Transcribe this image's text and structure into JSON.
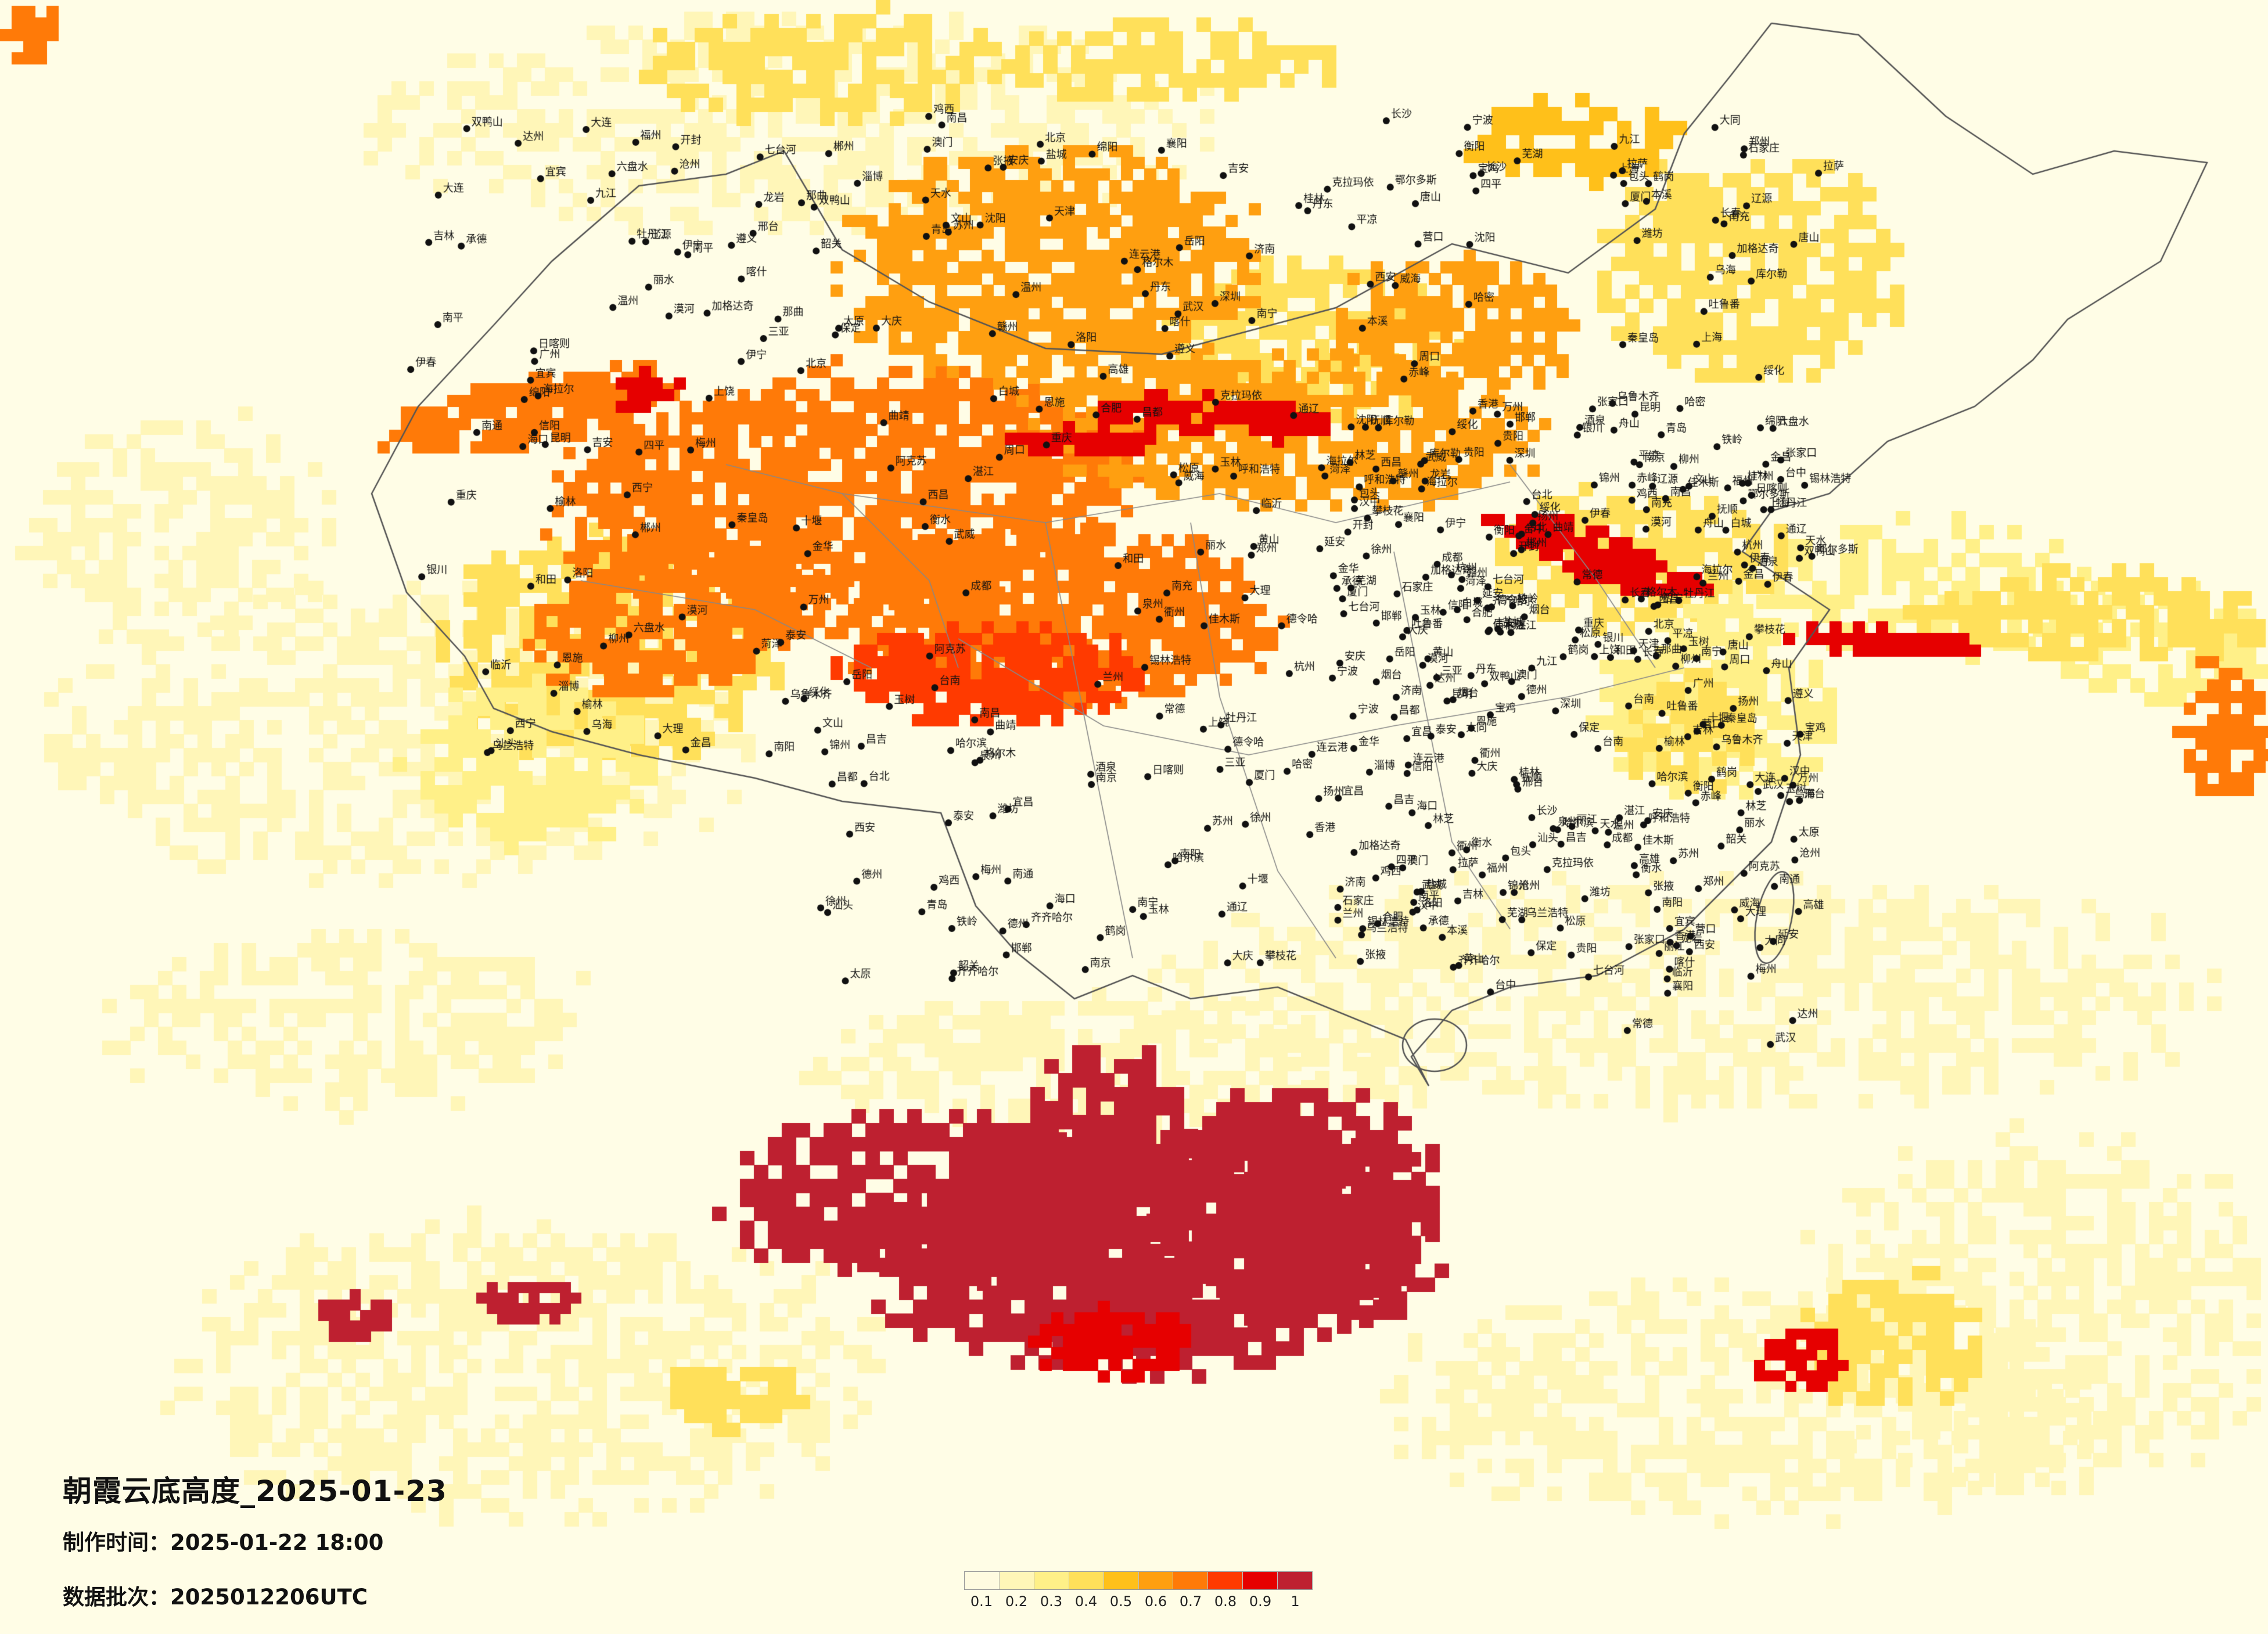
{
  "title": "朝霞云底高度_2025-01-23",
  "meta": {
    "made_label": "制作时间：",
    "made_value": "2025-01-22 18:00",
    "batch_label": "数据批次：",
    "batch_value": "2025012206UTC"
  },
  "legend": {
    "ticks": [
      "0.1",
      "0.2",
      "0.3",
      "0.4",
      "0.5",
      "0.6",
      "0.7",
      "0.8",
      "0.9",
      "1"
    ],
    "colors": [
      "#fffbe0",
      "#fff6b8",
      "#fff088",
      "#ffe05a",
      "#ffc01a",
      "#ff9f10",
      "#ff7a08",
      "#ff3a00",
      "#e60000",
      "#be2030"
    ]
  },
  "cities": [
    {
      "name": "漠河"
    },
    {
      "name": "加格达奇"
    },
    {
      "name": "海拉尔"
    },
    {
      "name": "齐齐哈尔"
    },
    {
      "name": "大庆"
    },
    {
      "name": "伊春"
    },
    {
      "name": "鹤岗"
    },
    {
      "name": "佳木斯"
    },
    {
      "name": "双鸭山"
    },
    {
      "name": "七台河"
    },
    {
      "name": "鸡西"
    },
    {
      "name": "牡丹江"
    },
    {
      "name": "哈尔滨"
    },
    {
      "name": "绥化"
    },
    {
      "name": "乌兰浩特"
    },
    {
      "name": "白城"
    },
    {
      "name": "松原"
    },
    {
      "name": "长春"
    },
    {
      "name": "吉林"
    },
    {
      "name": "通辽"
    },
    {
      "name": "四平"
    },
    {
      "name": "辽源"
    },
    {
      "name": "铁岭"
    },
    {
      "name": "抚顺"
    },
    {
      "name": "沈阳"
    },
    {
      "name": "本溪"
    },
    {
      "name": "丹东"
    },
    {
      "name": "锦州"
    },
    {
      "name": "营口"
    },
    {
      "name": "大连"
    },
    {
      "name": "赤峰"
    },
    {
      "name": "锡林浩特"
    },
    {
      "name": "张家口"
    },
    {
      "name": "北京"
    },
    {
      "name": "天津"
    },
    {
      "name": "唐山"
    },
    {
      "name": "秦皇岛"
    },
    {
      "name": "承德"
    },
    {
      "name": "保定"
    },
    {
      "name": "石家庄"
    },
    {
      "name": "衡水"
    },
    {
      "name": "沧州"
    },
    {
      "name": "德州"
    },
    {
      "name": "济南"
    },
    {
      "name": "淄博"
    },
    {
      "name": "潍坊"
    },
    {
      "name": "烟台"
    },
    {
      "name": "威海"
    },
    {
      "name": "青岛"
    },
    {
      "name": "临沂"
    },
    {
      "name": "泰安"
    },
    {
      "name": "菏泽"
    },
    {
      "name": "邯郸"
    },
    {
      "name": "邢台"
    },
    {
      "name": "太原"
    },
    {
      "name": "大同"
    },
    {
      "name": "呼和浩特"
    },
    {
      "name": "包头"
    },
    {
      "name": "鄂尔多斯"
    },
    {
      "name": "乌海"
    },
    {
      "name": "银川"
    },
    {
      "name": "西宁"
    },
    {
      "name": "兰州"
    },
    {
      "name": "天水"
    },
    {
      "name": "平凉"
    },
    {
      "name": "延安"
    },
    {
      "name": "榆林"
    },
    {
      "name": "西安"
    },
    {
      "name": "宝鸡"
    },
    {
      "name": "汉中"
    },
    {
      "name": "郑州"
    },
    {
      "name": "开封"
    },
    {
      "name": "洛阳"
    },
    {
      "name": "南阳"
    },
    {
      "name": "信阳"
    },
    {
      "name": "周口"
    },
    {
      "name": "徐州"
    },
    {
      "name": "连云港"
    },
    {
      "name": "盐城"
    },
    {
      "name": "南京"
    },
    {
      "name": "扬州"
    },
    {
      "name": "南通"
    },
    {
      "name": "苏州"
    },
    {
      "name": "上海"
    },
    {
      "name": "杭州"
    },
    {
      "name": "宁波"
    },
    {
      "name": "舟山"
    },
    {
      "name": "温州"
    },
    {
      "name": "金华"
    },
    {
      "name": "丽水"
    },
    {
      "name": "衢州"
    },
    {
      "name": "合肥"
    },
    {
      "name": "芜湖"
    },
    {
      "name": "安庆"
    },
    {
      "name": "黄山"
    },
    {
      "name": "武汉"
    },
    {
      "name": "宜昌"
    },
    {
      "name": "襄阳"
    },
    {
      "name": "十堰"
    },
    {
      "name": "恩施"
    },
    {
      "name": "长沙"
    },
    {
      "name": "岳阳"
    },
    {
      "name": "常德"
    },
    {
      "name": "衡阳"
    },
    {
      "name": "郴州"
    },
    {
      "name": "南昌"
    },
    {
      "name": "九江"
    },
    {
      "name": "赣州"
    },
    {
      "name": "吉安"
    },
    {
      "name": "上饶"
    },
    {
      "name": "福州"
    },
    {
      "name": "厦门"
    },
    {
      "name": "泉州"
    },
    {
      "name": "龙岩"
    },
    {
      "name": "南平"
    },
    {
      "name": "广州"
    },
    {
      "name": "深圳"
    },
    {
      "name": "汕头"
    },
    {
      "name": "湛江"
    },
    {
      "name": "韶关"
    },
    {
      "name": "梅州"
    },
    {
      "name": "南宁"
    },
    {
      "name": "桂林"
    },
    {
      "name": "柳州"
    },
    {
      "name": "玉林"
    },
    {
      "name": "海口"
    },
    {
      "name": "三亚"
    },
    {
      "name": "贵阳"
    },
    {
      "name": "遵义"
    },
    {
      "name": "六盘水"
    },
    {
      "name": "昆明"
    },
    {
      "name": "大理"
    },
    {
      "name": "丽江"
    },
    {
      "name": "曲靖"
    },
    {
      "name": "文山"
    },
    {
      "name": "成都"
    },
    {
      "name": "绵阳"
    },
    {
      "name": "宜宾"
    },
    {
      "name": "达州"
    },
    {
      "name": "南充"
    },
    {
      "name": "重庆"
    },
    {
      "name": "万州"
    },
    {
      "name": "拉萨"
    },
    {
      "name": "日喀则"
    },
    {
      "name": "林芝"
    },
    {
      "name": "昌都"
    },
    {
      "name": "那曲"
    },
    {
      "name": "格尔木"
    },
    {
      "name": "德令哈"
    },
    {
      "name": "乌鲁木齐"
    },
    {
      "name": "克拉玛依"
    },
    {
      "name": "伊宁"
    },
    {
      "name": "喀什"
    },
    {
      "name": "和田"
    },
    {
      "name": "库尔勒"
    },
    {
      "name": "阿克苏"
    },
    {
      "name": "哈密"
    },
    {
      "name": "吐鲁番"
    },
    {
      "name": "台北"
    },
    {
      "name": "台中"
    },
    {
      "name": "高雄"
    },
    {
      "name": "台南"
    },
    {
      "name": "香港"
    },
    {
      "name": "澳门"
    },
    {
      "name": "昌吉"
    },
    {
      "name": "西昌"
    },
    {
      "name": "攀枝花"
    },
    {
      "name": "玉树"
    },
    {
      "name": "酒泉"
    },
    {
      "name": "张掖"
    },
    {
      "name": "武威"
    },
    {
      "name": "金昌"
    }
  ]
}
